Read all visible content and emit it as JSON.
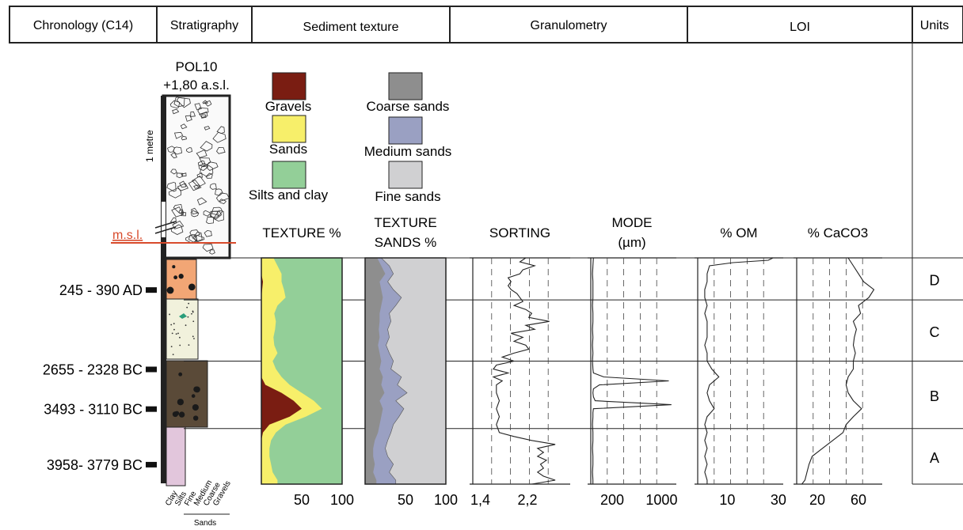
{
  "header": {
    "columns": [
      "Chronology (C14)",
      "Stratigraphy",
      "Sediment texture",
      "Granulometry",
      "LOI",
      "Units"
    ]
  },
  "core": {
    "name": "POL10",
    "elevation": "+1,80 a.s.l.",
    "scale_label": "1 metre",
    "msl_label": "m.s.l.",
    "grain_labels": [
      "Clay",
      "Silts",
      "Fine",
      "Medium",
      "Coarse",
      "Gravels"
    ],
    "sands_label": "Sands"
  },
  "legend": [
    {
      "label": "Gravels",
      "color": "#7a1d12"
    },
    {
      "label": "Sands",
      "color": "#f7ef6a"
    },
    {
      "label": "Silts and clay",
      "color": "#93cf98"
    },
    {
      "label": "Coarse sands",
      "color": "#8e8e8e"
    },
    {
      "label": "Medium sands",
      "color": "#9aa0c2"
    },
    {
      "label": "Fine sands",
      "color": "#d0d0d2"
    }
  ],
  "chronology": [
    {
      "label": "245 - 390 AD",
      "depth_cm": 40
    },
    {
      "label": "2655 - 2328 BC",
      "depth_cm": 140
    },
    {
      "label": "3493 - 3110 BC",
      "depth_cm": 190
    },
    {
      "label": "3958- 3779 BC",
      "depth_cm": 260
    }
  ],
  "units": [
    {
      "label": "D",
      "top_cm": 0,
      "bottom_cm": 53
    },
    {
      "label": "C",
      "top_cm": 53,
      "bottom_cm": 130
    },
    {
      "label": "B",
      "top_cm": 130,
      "bottom_cm": 215
    },
    {
      "label": "A",
      "top_cm": 215,
      "bottom_cm": 285
    }
  ],
  "chart_data": {
    "type": "area",
    "depth_unit": "cm below 0 m a.s.l. (approx.)",
    "depth_range": [
      0,
      285
    ],
    "panels": [
      {
        "title": "TEXTURE %",
        "xlim": [
          0,
          100
        ],
        "xticks": [
          "50",
          "100"
        ],
        "series": [
          {
            "name": "Gravels",
            "depth": [
              0,
              10,
              20,
              30,
              40,
              50,
              60,
              70,
              80,
              90,
              100,
              110,
              120,
              130,
              140,
              150,
              160,
              170,
              180,
              190,
              200,
              210,
              220,
              230,
              240,
              250,
              260,
              270,
              280,
              285
            ],
            "values": [
              0,
              0,
              0,
              2,
              1,
              0,
              0,
              0,
              0,
              0,
              0,
              0,
              0,
              0,
              0,
              0,
              5,
              25,
              40,
              50,
              35,
              10,
              2,
              0,
              0,
              0,
              0,
              0,
              0,
              0
            ]
          },
          {
            "name": "Sands",
            "depth": [
              0,
              10,
              20,
              30,
              40,
              50,
              60,
              70,
              80,
              90,
              100,
              110,
              120,
              130,
              140,
              150,
              160,
              170,
              180,
              190,
              200,
              210,
              220,
              230,
              240,
              250,
              260,
              270,
              280,
              285
            ],
            "values": [
              15,
              20,
              25,
              25,
              28,
              30,
              20,
              16,
              18,
              17,
              15,
              16,
              20,
              14,
              18,
              25,
              35,
              50,
              65,
              75,
              55,
              30,
              18,
              12,
              10,
              10,
              12,
              14,
              20,
              20
            ]
          }
        ]
      },
      {
        "title": "TEXTURE SANDS %",
        "xlim": [
          0,
          100
        ],
        "xticks": [
          "50",
          "100"
        ],
        "series": [
          {
            "name": "Coarse sands",
            "depth": [
              0,
              10,
              20,
              30,
              40,
              50,
              60,
              70,
              80,
              90,
              100,
              110,
              120,
              130,
              140,
              150,
              160,
              170,
              180,
              190,
              200,
              210,
              220,
              230,
              240,
              250,
              260,
              270,
              280,
              285
            ],
            "values": [
              15,
              20,
              25,
              18,
              20,
              22,
              20,
              18,
              18,
              17,
              18,
              16,
              18,
              20,
              18,
              22,
              20,
              24,
              18,
              22,
              20,
              18,
              16,
              12,
              10,
              10,
              12,
              10,
              14,
              14
            ]
          },
          {
            "name": "Medium sands",
            "depth": [
              0,
              10,
              20,
              30,
              40,
              50,
              60,
              70,
              80,
              90,
              100,
              110,
              120,
              130,
              140,
              150,
              160,
              170,
              180,
              190,
              200,
              210,
              220,
              230,
              240,
              250,
              260,
              270,
              280,
              285
            ],
            "values": [
              20,
              30,
              35,
              28,
              35,
              45,
              38,
              30,
              32,
              28,
              30,
              26,
              30,
              35,
              32,
              45,
              40,
              52,
              38,
              48,
              42,
              35,
              32,
              28,
              25,
              28,
              35,
              30,
              38,
              38
            ]
          }
        ]
      },
      {
        "title": "SORTING",
        "xlim": [
          1.2,
          2.8
        ],
        "xticks": [
          "1,4",
          "2,2"
        ],
        "depth": [
          0,
          5,
          10,
          15,
          20,
          25,
          30,
          35,
          40,
          45,
          50,
          55,
          60,
          65,
          70,
          75,
          80,
          85,
          90,
          95,
          100,
          105,
          110,
          115,
          120,
          125,
          130,
          135,
          140,
          145,
          150,
          155,
          160,
          170,
          180,
          190,
          200,
          210,
          220,
          225,
          230,
          235,
          240,
          245,
          250,
          255,
          260,
          265,
          270,
          275,
          280,
          285
        ],
        "values": [
          2.1,
          2.0,
          2.25,
          2.05,
          2.0,
          1.8,
          1.85,
          1.8,
          1.85,
          1.95,
          2.0,
          2.05,
          1.9,
          2.1,
          2.2,
          2.15,
          2.5,
          2.1,
          2.25,
          1.85,
          2.05,
          1.9,
          2.1,
          2.15,
          1.9,
          1.7,
          1.9,
          1.6,
          1.55,
          1.8,
          1.55,
          1.7,
          1.6,
          1.6,
          1.65,
          1.6,
          1.65,
          1.6,
          1.65,
          1.9,
          2.2,
          2.6,
          2.3,
          2.4,
          2.3,
          2.45,
          2.35,
          2.4,
          2.3,
          2.4,
          2.6,
          2.2
        ]
      },
      {
        "title": "MODE (µm)",
        "xlim": [
          150,
          1100
        ],
        "xticks": [
          "200",
          "1000"
        ],
        "depth": [
          0,
          10,
          20,
          30,
          40,
          50,
          60,
          70,
          80,
          90,
          100,
          110,
          120,
          130,
          140,
          145,
          150,
          155,
          160,
          165,
          170,
          175,
          180,
          185,
          190,
          195,
          200,
          210,
          220,
          230,
          240,
          250,
          260,
          270,
          280,
          285
        ],
        "values": [
          180,
          175,
          170,
          175,
          175,
          175,
          170,
          175,
          175,
          170,
          175,
          170,
          175,
          170,
          175,
          180,
          300,
          1050,
          250,
          180,
          175,
          180,
          200,
          1080,
          180,
          175,
          175,
          170,
          175,
          175,
          170,
          175,
          175,
          170,
          175,
          175
        ]
      },
      {
        "title": "% OM",
        "xlim": [
          0,
          35
        ],
        "xticks": [
          "10",
          "30"
        ],
        "depth": [
          0,
          3,
          6,
          10,
          20,
          30,
          40,
          50,
          60,
          70,
          80,
          90,
          100,
          110,
          120,
          130,
          140,
          150,
          160,
          170,
          180,
          190,
          200,
          210,
          220,
          230,
          240,
          250,
          260,
          270,
          280,
          285
        ],
        "values": [
          32,
          30,
          15,
          5,
          4,
          4,
          3,
          3,
          4,
          3,
          4,
          4,
          4,
          3,
          4,
          4,
          6,
          9,
          5,
          4,
          5,
          7,
          4,
          3,
          4,
          3,
          4,
          3,
          4,
          3,
          4,
          4
        ]
      },
      {
        "title": "% CaCO3",
        "xlim": [
          0,
          80
        ],
        "xticks": [
          "20",
          "60"
        ],
        "depth": [
          0,
          10,
          20,
          30,
          40,
          50,
          60,
          70,
          80,
          90,
          100,
          110,
          120,
          130,
          140,
          150,
          160,
          170,
          180,
          190,
          200,
          210,
          220,
          230,
          240,
          250,
          260,
          270,
          280,
          285
        ],
        "values": [
          50,
          55,
          60,
          65,
          75,
          70,
          60,
          62,
          55,
          58,
          56,
          55,
          57,
          55,
          55,
          50,
          48,
          50,
          55,
          63,
          55,
          48,
          45,
          35,
          25,
          15,
          12,
          10,
          8,
          5
        ]
      }
    ]
  }
}
